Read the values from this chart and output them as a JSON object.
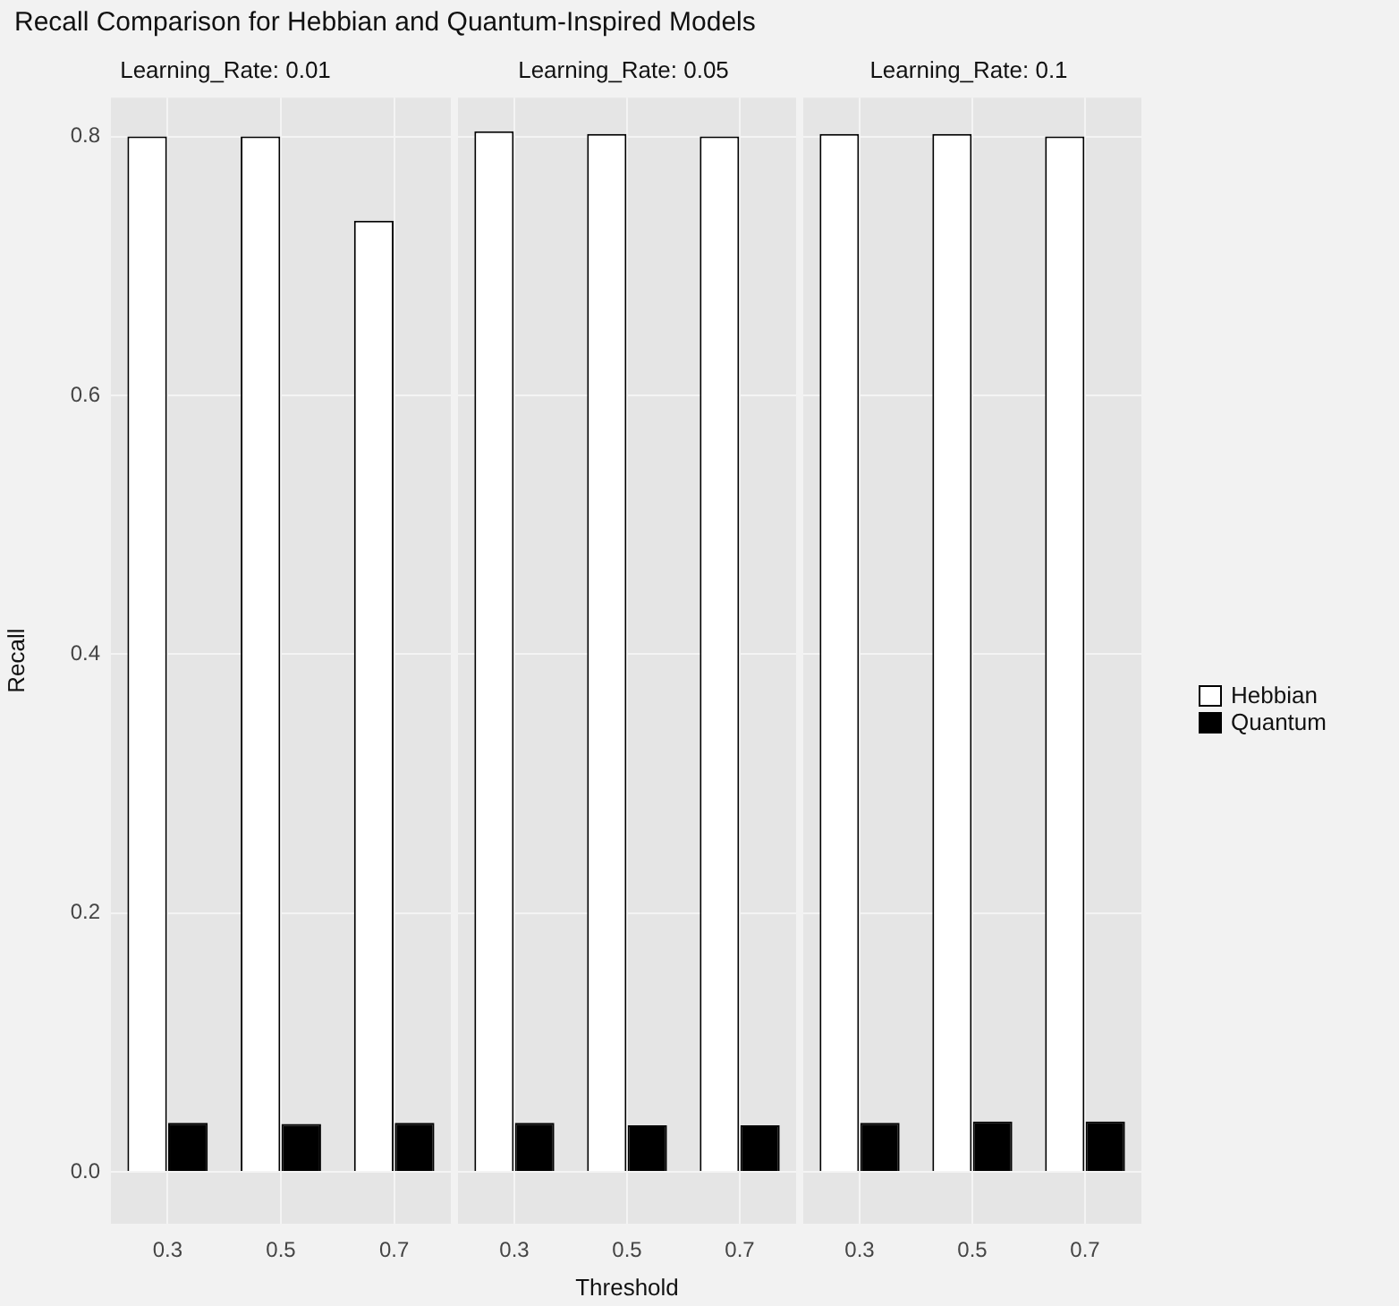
{
  "chart_data": [
    {
      "type": "bar",
      "title": "Recall Comparison for Hebbian and Quantum-Inspired Models",
      "subtitle": "Learning_Rate: 0.01",
      "ylabel": "Recall",
      "categories": [
        "0.3",
        "0.5",
        "0.7"
      ],
      "series": [
        {
          "color": "#ffffff",
          "values": [
            0.8,
            0.8,
            0.735
          ]
        },
        {
          "color": "#000000",
          "values": [
            0.038,
            0.037,
            0.038
          ]
        }
      ],
      "ylim": [
        -0.04,
        0.83
      ],
      "yticks": [
        {
          "value": 0,
          "label": "0.0"
        },
        0.2,
        0.4,
        0.6,
        0.8
      ],
      "grid": true
    },
    {
      "type": "bar",
      "subtitle": "Learning_Rate: 0.05",
      "xlabel": "Threshold",
      "categories": [
        "0.3",
        "0.5",
        "0.7"
      ],
      "series": [
        {
          "color": "#ffffff",
          "values": [
            0.804,
            0.802,
            0.8
          ]
        },
        {
          "color": "#000000",
          "values": [
            0.038,
            0.036,
            0.036
          ]
        }
      ],
      "ylim": [
        -0.04,
        0.83
      ],
      "yticks": [
        0,
        0.2,
        0.4,
        0.6,
        0.8
      ],
      "grid": true,
      "tick_labels": "x"
    },
    {
      "type": "bar",
      "subtitle": "Learning_Rate: 0.1",
      "categories": [
        "0.3",
        "0.5",
        "0.7"
      ],
      "series": [
        {
          "name": "Hebbian",
          "color": "#ffffff",
          "values": [
            0.802,
            0.802,
            0.8
          ]
        },
        {
          "name": "Quantum",
          "color": "#000000",
          "values": [
            0.038,
            0.039,
            0.039
          ]
        }
      ],
      "ylim": [
        -0.04,
        0.83
      ],
      "yticks": [
        0,
        0.2,
        0.4,
        0.6,
        0.8
      ],
      "grid": true,
      "tick_labels": "x",
      "legend": "right"
    }
  ]
}
